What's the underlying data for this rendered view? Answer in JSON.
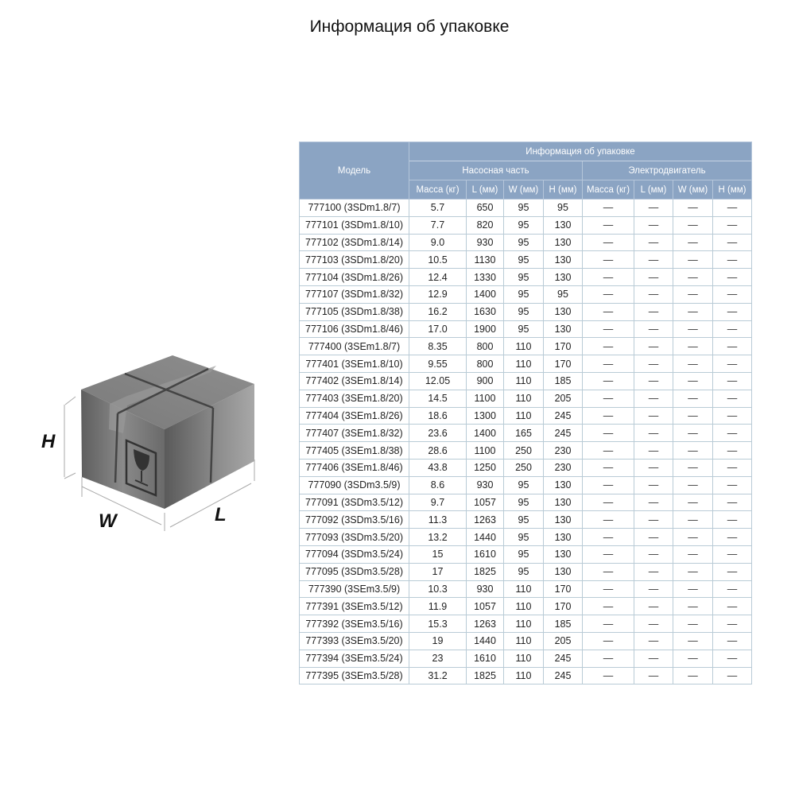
{
  "page_title": "Информация об упаковке",
  "illustration": {
    "labels": {
      "h": "H",
      "w": "W",
      "l": "L"
    },
    "icon": "fragile-glass-icon"
  },
  "table": {
    "header": {
      "model": "Модель",
      "group": "Информация об упаковке",
      "pump": "Насосная часть",
      "motor": "Электродвигатель",
      "columns": [
        "Масса (кг)",
        "L (мм)",
        "W (мм)",
        "H (мм)",
        "Масса (кг)",
        "L (мм)",
        "W (мм)",
        "H (мм)"
      ]
    },
    "dash": "—",
    "rows": [
      [
        "777100 (3SDm1.8/7)",
        "5.7",
        "650",
        "95",
        "95"
      ],
      [
        "777101 (3SDm1.8/10)",
        "7.7",
        "820",
        "95",
        "130"
      ],
      [
        "777102 (3SDm1.8/14)",
        "9.0",
        "930",
        "95",
        "130"
      ],
      [
        "777103 (3SDm1.8/20)",
        "10.5",
        "1130",
        "95",
        "130"
      ],
      [
        "777104 (3SDm1.8/26)",
        "12.4",
        "1330",
        "95",
        "130"
      ],
      [
        "777107 (3SDm1.8/32)",
        "12.9",
        "1400",
        "95",
        "95"
      ],
      [
        "777105 (3SDm1.8/38)",
        "16.2",
        "1630",
        "95",
        "130"
      ],
      [
        "777106 (3SDm1.8/46)",
        "17.0",
        "1900",
        "95",
        "130"
      ],
      [
        "777400 (3SEm1.8/7)",
        "8.35",
        "800",
        "110",
        "170"
      ],
      [
        "777401 (3SEm1.8/10)",
        "9.55",
        "800",
        "110",
        "170"
      ],
      [
        "777402 (3SEm1.8/14)",
        "12.05",
        "900",
        "110",
        "185"
      ],
      [
        "777403 (3SEm1.8/20)",
        "14.5",
        "1100",
        "110",
        "205"
      ],
      [
        "777404 (3SEm1.8/26)",
        "18.6",
        "1300",
        "110",
        "245"
      ],
      [
        "777407 (3SEm1.8/32)",
        "23.6",
        "1400",
        "165",
        "245"
      ],
      [
        "777405 (3SEm1.8/38)",
        "28.6",
        "1100",
        "250",
        "230"
      ],
      [
        "777406 (3SEm1.8/46)",
        "43.8",
        "1250",
        "250",
        "230"
      ],
      [
        "777090 (3SDm3.5/9)",
        "8.6",
        "930",
        "95",
        "130"
      ],
      [
        "777091 (3SDm3.5/12)",
        "9.7",
        "1057",
        "95",
        "130"
      ],
      [
        "777092 (3SDm3.5/16)",
        "11.3",
        "1263",
        "95",
        "130"
      ],
      [
        "777093 (3SDm3.5/20)",
        "13.2",
        "1440",
        "95",
        "130"
      ],
      [
        "777094 (3SDm3.5/24)",
        "15",
        "1610",
        "95",
        "130"
      ],
      [
        "777095 (3SDm3.5/28)",
        "17",
        "1825",
        "95",
        "130"
      ],
      [
        "777390 (3SEm3.5/9)",
        "10.3",
        "930",
        "110",
        "170"
      ],
      [
        "777391 (3SEm3.5/12)",
        "11.9",
        "1057",
        "110",
        "170"
      ],
      [
        "777392 (3SEm3.5/16)",
        "15.3",
        "1263",
        "110",
        "185"
      ],
      [
        "777393 (3SEm3.5/20)",
        "19",
        "1440",
        "110",
        "205"
      ],
      [
        "777394 (3SEm3.5/24)",
        "23",
        "1610",
        "110",
        "245"
      ],
      [
        "777395 (3SEm3.5/28)",
        "31.2",
        "1825",
        "110",
        "245"
      ]
    ]
  },
  "colors": {
    "header_bg": "#8ba4c3",
    "border": "#b9cbd6"
  }
}
